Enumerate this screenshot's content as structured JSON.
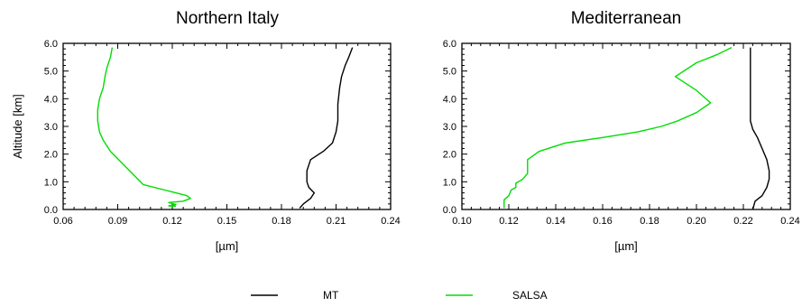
{
  "chart_data": [
    {
      "type": "line",
      "title": "Northern Italy",
      "xlabel": "[µm]",
      "ylabel": "Altitude [km]",
      "xlim": [
        0.06,
        0.24
      ],
      "ylim": [
        0.0,
        6.0
      ],
      "xticks": [
        "0.06",
        "0.09",
        "0.12",
        "0.15",
        "0.18",
        "0.21",
        "0.24"
      ],
      "yticks": [
        "0.0",
        "1.0",
        "2.0",
        "3.0",
        "4.0",
        "5.0",
        "6.0"
      ],
      "series": [
        {
          "name": "MT",
          "color": "#000000",
          "points": [
            [
              0.19,
              0.05
            ],
            [
              0.192,
              0.2
            ],
            [
              0.196,
              0.4
            ],
            [
              0.198,
              0.6
            ],
            [
              0.195,
              0.8
            ],
            [
              0.194,
              1.0
            ],
            [
              0.194,
              1.4
            ],
            [
              0.196,
              1.8
            ],
            [
              0.203,
              2.1
            ],
            [
              0.208,
              2.4
            ],
            [
              0.21,
              2.8
            ],
            [
              0.211,
              3.2
            ],
            [
              0.211,
              3.8
            ],
            [
              0.212,
              4.4
            ],
            [
              0.213,
              4.8
            ],
            [
              0.215,
              5.2
            ],
            [
              0.217,
              5.5
            ],
            [
              0.219,
              5.85
            ]
          ]
        },
        {
          "name": "SALSA",
          "color": "#00dd00",
          "points": [
            [
              0.122,
              0.12
            ],
            [
              0.118,
              0.13
            ],
            [
              0.122,
              0.18
            ],
            [
              0.118,
              0.25
            ],
            [
              0.126,
              0.3
            ],
            [
              0.13,
              0.4
            ],
            [
              0.128,
              0.5
            ],
            [
              0.122,
              0.6
            ],
            [
              0.116,
              0.7
            ],
            [
              0.104,
              0.9
            ],
            [
              0.098,
              1.3
            ],
            [
              0.092,
              1.7
            ],
            [
              0.086,
              2.1
            ],
            [
              0.082,
              2.5
            ],
            [
              0.08,
              2.8
            ],
            [
              0.079,
              3.2
            ],
            [
              0.079,
              3.6
            ],
            [
              0.08,
              4.0
            ],
            [
              0.082,
              4.4
            ],
            [
              0.083,
              4.8
            ],
            [
              0.084,
              5.1
            ],
            [
              0.086,
              5.5
            ],
            [
              0.087,
              5.85
            ]
          ]
        }
      ]
    },
    {
      "type": "line",
      "title": "Mediterranean",
      "xlabel": "[µm]",
      "ylabel": "",
      "xlim": [
        0.1,
        0.24
      ],
      "ylim": [
        0.0,
        6.0
      ],
      "xticks": [
        "0.10",
        "0.12",
        "0.14",
        "0.16",
        "0.18",
        "0.20",
        "0.22",
        "0.24"
      ],
      "yticks": [
        "0.0",
        "1.0",
        "2.0",
        "3.0",
        "4.0",
        "5.0",
        "6.0"
      ],
      "series": [
        {
          "name": "MT",
          "color": "#000000",
          "points": [
            [
              0.224,
              0.0
            ],
            [
              0.225,
              0.3
            ],
            [
              0.228,
              0.5
            ],
            [
              0.23,
              0.8
            ],
            [
              0.231,
              1.1
            ],
            [
              0.231,
              1.4
            ],
            [
              0.23,
              1.8
            ],
            [
              0.228,
              2.2
            ],
            [
              0.226,
              2.6
            ],
            [
              0.224,
              2.9
            ],
            [
              0.223,
              3.2
            ],
            [
              0.223,
              4.0
            ],
            [
              0.223,
              5.0
            ],
            [
              0.223,
              5.85
            ]
          ]
        },
        {
          "name": "SALSA",
          "color": "#00dd00",
          "points": [
            [
              0.118,
              0.05
            ],
            [
              0.118,
              0.35
            ],
            [
              0.12,
              0.5
            ],
            [
              0.121,
              0.7
            ],
            [
              0.123,
              0.8
            ],
            [
              0.123,
              0.95
            ],
            [
              0.126,
              1.1
            ],
            [
              0.128,
              1.3
            ],
            [
              0.128,
              1.8
            ],
            [
              0.133,
              2.1
            ],
            [
              0.144,
              2.4
            ],
            [
              0.16,
              2.6
            ],
            [
              0.175,
              2.8
            ],
            [
              0.185,
              3.0
            ],
            [
              0.192,
              3.2
            ],
            [
              0.2,
              3.5
            ],
            [
              0.206,
              3.85
            ],
            [
              0.2,
              4.3
            ],
            [
              0.191,
              4.8
            ],
            [
              0.2,
              5.3
            ],
            [
              0.209,
              5.6
            ],
            [
              0.215,
              5.85
            ]
          ]
        }
      ]
    }
  ]
}
